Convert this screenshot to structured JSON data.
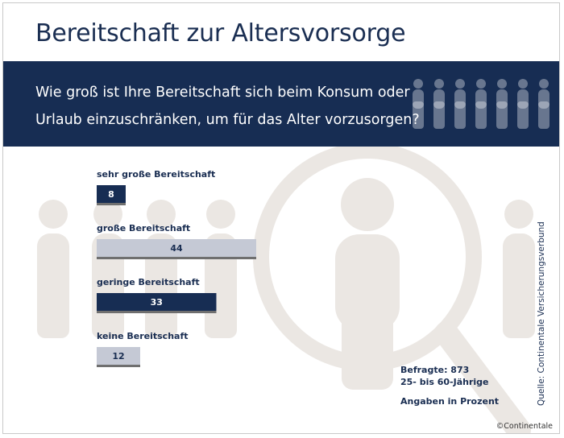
{
  "title": "Bereitschaft zur Altersvorsorge",
  "question": "Wie groß ist Ihre Bereitschaft sich beim Konsum oder Urlaub einzuschränken, um für das Alter vorzusorgen?",
  "notes": {
    "respondents": "Befragte: 873",
    "age_group": "25- bis 60-Jährige",
    "unit": "Angaben in Prozent"
  },
  "source": "Quelle: Continentale Versicherungsverbund",
  "copyright": "©Continentale",
  "colors": {
    "navy": "#172d53",
    "light_bar": "#c5c9d5",
    "bar_shadow": "#6f6f6f",
    "background_art": "#ebe7e3"
  },
  "chart_data": {
    "type": "bar",
    "orientation": "horizontal",
    "categories": [
      "sehr große Bereitschaft",
      "große Bereitschaft",
      "geringe Bereitschaft",
      "keine Bereitschaft"
    ],
    "values": [
      8,
      44,
      33,
      12
    ],
    "bar_colors": [
      "#172d53",
      "#c5c9d5",
      "#172d53",
      "#c5c9d5"
    ],
    "label_colors": [
      "#ffffff",
      "#1a2e52",
      "#ffffff",
      "#1a2e52"
    ],
    "unit": "Prozent",
    "grid": false,
    "legend": "none"
  }
}
